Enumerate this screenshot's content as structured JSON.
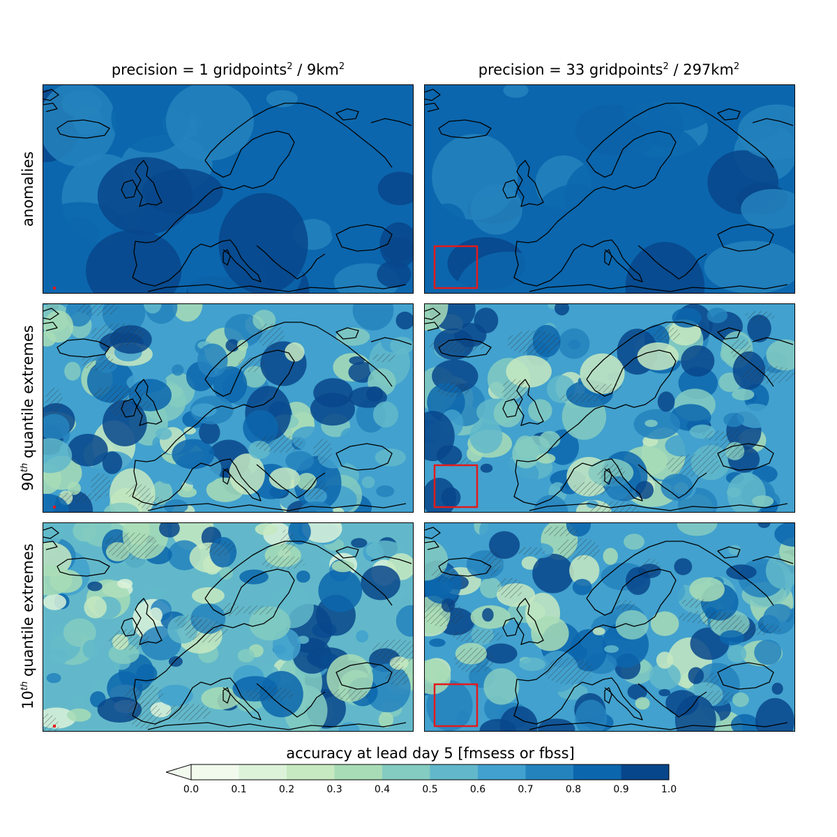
{
  "columns": [
    {
      "title_main": "precision = 1 gridpoints",
      "title_sup": "2",
      "title_mid": " / 9km",
      "title_sup2": "2"
    },
    {
      "title_main": "precision = 33 gridpoints",
      "title_sup": "2",
      "title_mid": " / 297km",
      "title_sup2": "2"
    }
  ],
  "rows": [
    {
      "label_pre": "",
      "label_sup": "",
      "label_main": "anomalies"
    },
    {
      "label_pre": "90",
      "label_sup": "th",
      "label_main": " quantile extremes"
    },
    {
      "label_pre": "10",
      "label_sup": "th",
      "label_main": " quantile extremes"
    }
  ],
  "colorbar": {
    "title": "accuracy at lead day 5 [fmsess or fbss]",
    "ticks": [
      "0.0",
      "0.1",
      "0.2",
      "0.3",
      "0.4",
      "0.5",
      "0.6",
      "0.7",
      "0.8",
      "0.9",
      "1.0"
    ],
    "colors": [
      "#f2faee",
      "#dcf2d9",
      "#c7e9c1",
      "#a8dcb6",
      "#84cbc1",
      "#62b8ca",
      "#42a1ce",
      "#2483bd",
      "#0c66ad",
      "#08468b"
    ]
  },
  "panels": [
    {
      "base": "#0c66ad",
      "hatch": false,
      "box": "small"
    },
    {
      "base": "#0c66ad",
      "hatch": false,
      "box": "large"
    },
    {
      "base": "#42a1ce",
      "hatch": true,
      "box": "small"
    },
    {
      "base": "#42a1ce",
      "hatch": true,
      "box": "large"
    },
    {
      "base": "#62b8ca",
      "hatch": true,
      "box": "small"
    },
    {
      "base": "#42a1ce",
      "hatch": true,
      "box": "large"
    }
  ],
  "highlight_color": "#e31a1c"
}
